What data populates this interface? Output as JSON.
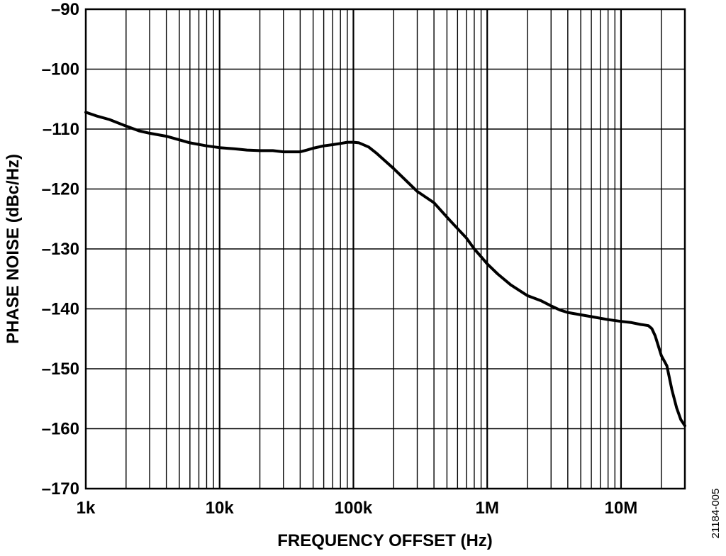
{
  "chart_data": {
    "type": "line",
    "title": "",
    "xlabel": "FREQUENCY OFFSET (Hz)",
    "ylabel": "PHASE NOISE (dBc/Hz)",
    "x_scale": "log",
    "xlim": [
      1000,
      30000000
    ],
    "ylim": [
      -170,
      -90
    ],
    "grid": true,
    "x_ticks": [
      {
        "value": 1000,
        "label": "1k"
      },
      {
        "value": 10000,
        "label": "10k"
      },
      {
        "value": 100000,
        "label": "100k"
      },
      {
        "value": 1000000,
        "label": "1M"
      },
      {
        "value": 10000000,
        "label": "10M"
      }
    ],
    "y_ticks": [
      {
        "value": -90,
        "label": "–90"
      },
      {
        "value": -100,
        "label": "–100"
      },
      {
        "value": -110,
        "label": "–110"
      },
      {
        "value": -120,
        "label": "–120"
      },
      {
        "value": -130,
        "label": "–130"
      },
      {
        "value": -140,
        "label": "–140"
      },
      {
        "value": -150,
        "label": "–150"
      },
      {
        "value": -160,
        "label": "–160"
      },
      {
        "value": -170,
        "label": "–170"
      }
    ],
    "series": [
      {
        "color": "#000000",
        "x": [
          1000,
          1200,
          1500,
          2000,
          2500,
          3000,
          4000,
          5000,
          6000,
          8000,
          10000,
          13000,
          16000,
          20000,
          25000,
          30000,
          35000,
          40000,
          45000,
          50000,
          60000,
          70000,
          80000,
          90000,
          100000,
          110000,
          130000,
          150000,
          200000,
          250000,
          300000,
          400000,
          500000,
          600000,
          700000,
          800000,
          900000,
          1000000,
          1200000,
          1500000,
          2000000,
          2500000,
          3000000,
          3500000,
          4000000,
          5000000,
          6000000,
          8000000,
          10000000,
          12000000,
          14000000,
          15000000,
          16000000,
          17000000,
          18000000,
          20000000,
          22000000,
          24000000,
          26000000,
          28000000,
          30000000
        ],
        "y": [
          -107.2,
          -107.8,
          -108.4,
          -109.5,
          -110.3,
          -110.7,
          -111.2,
          -111.8,
          -112.3,
          -112.8,
          -113.1,
          -113.3,
          -113.5,
          -113.6,
          -113.6,
          -113.8,
          -113.8,
          -113.8,
          -113.5,
          -113.2,
          -112.8,
          -112.6,
          -112.4,
          -112.2,
          -112.2,
          -112.3,
          -113.0,
          -114.1,
          -116.6,
          -118.7,
          -120.4,
          -122.3,
          -124.7,
          -126.6,
          -128.2,
          -130.0,
          -131.3,
          -132.5,
          -134.2,
          -136.0,
          -137.8,
          -138.6,
          -139.5,
          -140.2,
          -140.6,
          -141.0,
          -141.3,
          -141.8,
          -142.1,
          -142.3,
          -142.6,
          -142.7,
          -142.8,
          -143.3,
          -144.5,
          -147.8,
          -149.5,
          -153.5,
          -156.5,
          -158.5,
          -159.5
        ]
      }
    ]
  },
  "figure_id": "21184-005"
}
